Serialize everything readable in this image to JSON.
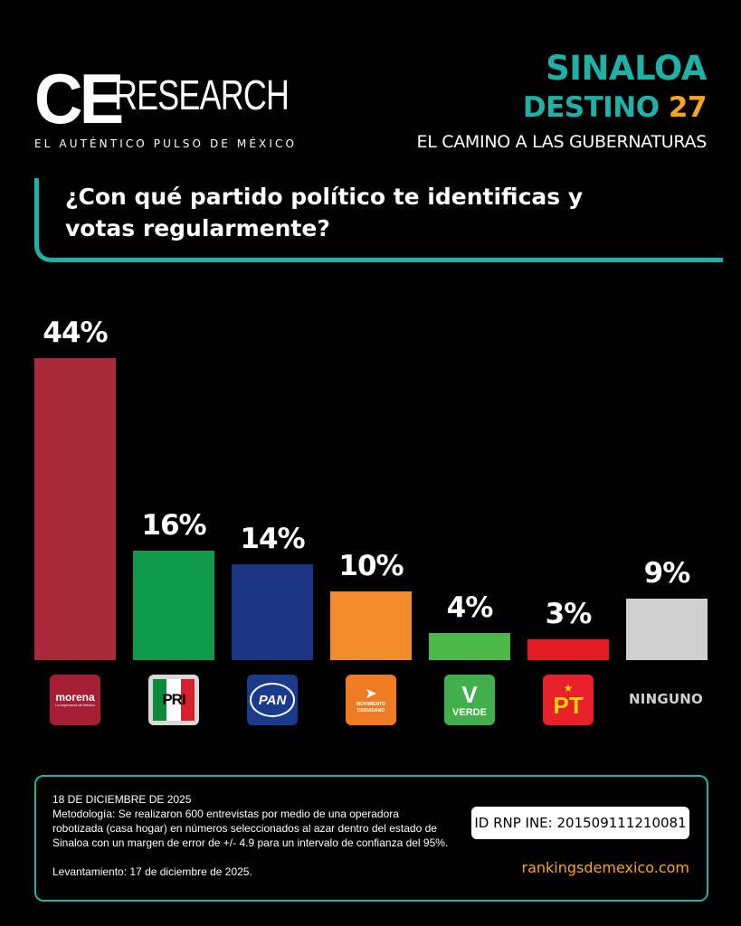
{
  "brand": {
    "logo_ce": "CE",
    "logo_research": "RESEARCH",
    "tagline": "EL AUTÉNTICO PULSO DE MÉXICO"
  },
  "header": {
    "state": "SINALOA",
    "destino_word": "DESTINO",
    "destino_num": "27",
    "subtitle": "EL CAMINO A LAS GUBERNATURAS"
  },
  "question": "¿Con qué partido político te identificas y votas regularmente?",
  "chart_data": {
    "type": "bar",
    "categories": [
      "morena",
      "PRI",
      "PAN",
      "MOVIMIENTO CIUDADANO",
      "VERDE",
      "PT",
      "NINGUNO"
    ],
    "values": [
      44,
      16,
      14,
      10,
      4,
      3,
      9
    ],
    "value_labels": [
      "44%",
      "16%",
      "14%",
      "10%",
      "4%",
      "3%",
      "9%"
    ],
    "colors": [
      "#a8293a",
      "#0f9a4a",
      "#1b3583",
      "#f28c2a",
      "#4cb848",
      "#e31b23",
      "#cfcfcf"
    ],
    "ylim": [
      0,
      44
    ],
    "grid": false,
    "legend": "none"
  },
  "parties": {
    "morena": {
      "name": "morena",
      "slogan": "La esperanza de México"
    },
    "pri": {
      "name": "PRI"
    },
    "pan": {
      "name": "PAN"
    },
    "mc": {
      "line1": "MOVIMIENTO",
      "line2": "CIUDADANO"
    },
    "verde": {
      "mark": "V",
      "name": "VERDE"
    },
    "pt": {
      "name": "PT"
    },
    "ninguno": "NINGUNO"
  },
  "footer": {
    "date": "18 DE DICIEMBRE DE 2025",
    "methodology": "Metodología: Se realizaron 600 entrevistas por medio de una operadora robotizada (casa hogar) en números seleccionados al azar dentro del estado de Sinaloa con un margen de error de +/- 4.9 para un intervalo de confianza del 95%.",
    "levantamiento": "Levantamiento: 17 de diciembre de 2025.",
    "id_rnp": "ID RNP INE: 201509111210081",
    "url": "rankingsdemexico.com"
  }
}
